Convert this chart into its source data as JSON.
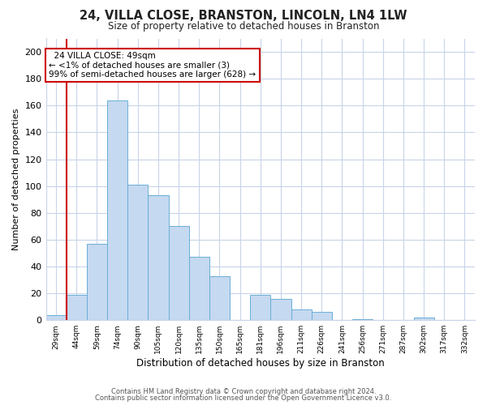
{
  "title": "24, VILLA CLOSE, BRANSTON, LINCOLN, LN4 1LW",
  "subtitle": "Size of property relative to detached houses in Branston",
  "xlabel": "Distribution of detached houses by size in Branston",
  "ylabel": "Number of detached properties",
  "bin_labels": [
    "29sqm",
    "44sqm",
    "59sqm",
    "74sqm",
    "90sqm",
    "105sqm",
    "120sqm",
    "135sqm",
    "150sqm",
    "165sqm",
    "181sqm",
    "196sqm",
    "211sqm",
    "226sqm",
    "241sqm",
    "256sqm",
    "271sqm",
    "287sqm",
    "302sqm",
    "317sqm",
    "332sqm"
  ],
  "bar_heights": [
    4,
    19,
    57,
    164,
    101,
    93,
    70,
    47,
    33,
    0,
    19,
    16,
    8,
    6,
    0,
    1,
    0,
    0,
    2,
    0,
    0
  ],
  "bar_color": "#c5d9f0",
  "bar_edge_color": "#6aaed6",
  "vertical_line_x": 1,
  "vertical_line_color": "#cc0000",
  "ylim": [
    0,
    210
  ],
  "yticks": [
    0,
    20,
    40,
    60,
    80,
    100,
    120,
    140,
    160,
    180,
    200
  ],
  "annotation_title": "24 VILLA CLOSE: 49sqm",
  "annotation_line1": "← <1% of detached houses are smaller (3)",
  "annotation_line2": "99% of semi-detached houses are larger (628) →",
  "annotation_box_color": "#ffffff",
  "annotation_box_edge": "#cc0000",
  "footer_line1": "Contains HM Land Registry data © Crown copyright and database right 2024.",
  "footer_line2": "Contains public sector information licensed under the Open Government Licence v3.0.",
  "background_color": "#ffffff",
  "grid_color": "#c8d4e8"
}
